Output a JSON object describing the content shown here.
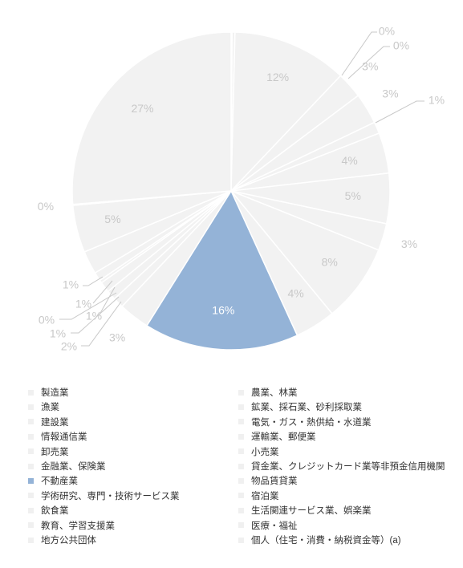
{
  "colors": {
    "slice_default": "#f2f2f2",
    "slice_highlight": "#94b3d7",
    "label_default": "#c8c8c8",
    "label_highlight": "#ffffff",
    "separator": "#ffffff",
    "leader_line": "#c8c8c8"
  },
  "chart_data": {
    "type": "pie",
    "title": "",
    "start": "top",
    "direction": "clockwise",
    "highlighted": "不動産業",
    "slices": [
      {
        "name": "農業、林業",
        "value": 0.1,
        "label": "0%"
      },
      {
        "name": "鉱業、採石業、砂利採取業",
        "value": 0.3,
        "label": "0%"
      },
      {
        "name": "製造業",
        "value": 11.9,
        "label": "12%"
      },
      {
        "name": "電気・ガス・熱供給・水道業",
        "value": 2.7,
        "label": "3%"
      },
      {
        "name": "情報通信業",
        "value": 3.2,
        "label": "3%"
      },
      {
        "name": "運輸業、郵便業",
        "value": 1.2,
        "label": "1%"
      },
      {
        "name": "卸売業",
        "value": 4.2,
        "label": "4%"
      },
      {
        "name": "小売業",
        "value": 5.2,
        "label": "5%"
      },
      {
        "name": "貸金業、クレジットカード業等非預金信用機関",
        "value": 2.8,
        "label": "3%"
      },
      {
        "name": "金融業、保険業",
        "value": 8.1,
        "label": "8%"
      },
      {
        "name": "物品賃貸業",
        "value": 4.2,
        "label": "4%"
      },
      {
        "name": "不動産業",
        "value": 16.0,
        "label": "16%"
      },
      {
        "name": "学術研究、専門・技術サービス業",
        "value": 3.2,
        "label": "3%"
      },
      {
        "name": "宿泊業",
        "value": 1.1,
        "label": "1%"
      },
      {
        "name": "飲食業",
        "value": 1.0,
        "label": "1%"
      },
      {
        "name": "生活関連サービス業、娯楽業",
        "value": 1.1,
        "label": "1%"
      },
      {
        "name": "教育、学習支援業",
        "value": 0.3,
        "label": "0%"
      },
      {
        "name": "医療・福祉",
        "value": 0.9,
        "label": "1%"
      },
      {
        "name": "地方公共団体",
        "value": 2.4,
        "label": "2%"
      },
      {
        "name": "個人（住宅・消費・納税資金等）(a)",
        "value": 4.9,
        "label": "5%"
      },
      {
        "name": "漁業",
        "value": 0.1,
        "label": "0%"
      },
      {
        "name": "建設業",
        "value": 26.8,
        "label": "27%"
      }
    ]
  },
  "legend": {
    "columns": [
      [
        "製造業",
        "漁業",
        "建設業",
        "情報通信業",
        "卸売業",
        "金融業、保険業",
        "不動産業",
        "学術研究、専門・技術サービス業",
        "飲食業",
        "教育、学習支援業",
        "地方公共団体"
      ],
      [
        "農業、林業",
        "鉱業、採石業、砂利採取業",
        "電気・ガス・熱供給・水道業",
        "運輸業、郵便業",
        "小売業",
        "貸金業、クレジットカード業等非預金信用機関",
        "物品賃貸業",
        "宿泊業",
        "生活関連サービス業、娯楽業",
        "医療・福祉",
        "個人（住宅・消費・納税資金等）(a)"
      ]
    ]
  }
}
